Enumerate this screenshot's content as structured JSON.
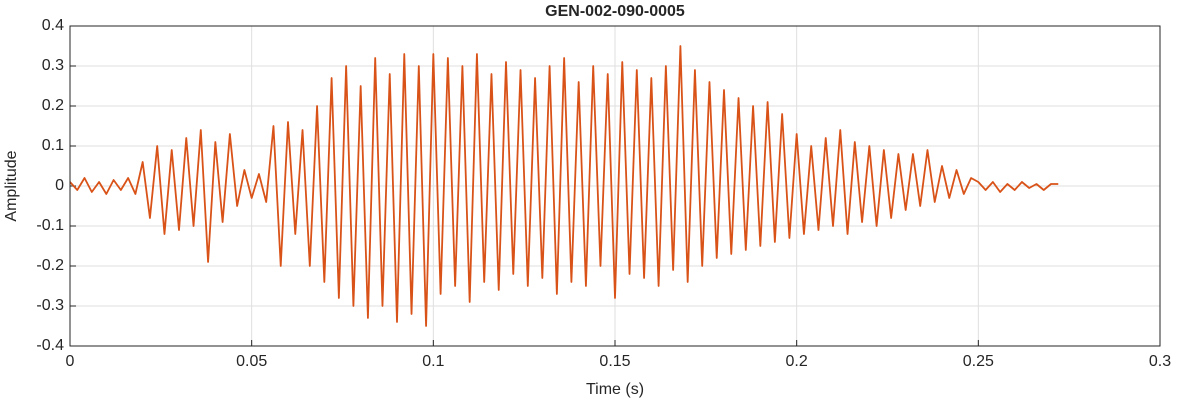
{
  "chart_data": {
    "type": "line",
    "title": "GEN-002-090-0005",
    "x_label": "Time (s)",
    "y_label": "Amplitude",
    "color": "#d95319",
    "grid": true,
    "xlim": [
      0,
      0.3
    ],
    "xticks": [
      0,
      0.05,
      0.1,
      0.15,
      0.2,
      0.25,
      0.3
    ],
    "ylim": [
      -0.4,
      0.4
    ],
    "yticks": [
      0.4,
      0.3,
      0.2,
      0.1,
      0,
      -0.1,
      -0.2,
      -0.3,
      -0.4
    ],
    "x": [
      0,
      0.002,
      0.004,
      0.006,
      0.008,
      0.01,
      0.012,
      0.014,
      0.016,
      0.018,
      0.02,
      0.022,
      0.024,
      0.026,
      0.028,
      0.03,
      0.032,
      0.034,
      0.036,
      0.038,
      0.04,
      0.042,
      0.044,
      0.046,
      0.048,
      0.05,
      0.052,
      0.054,
      0.056,
      0.058,
      0.06,
      0.062,
      0.064,
      0.066,
      0.068,
      0.07,
      0.072,
      0.074,
      0.076,
      0.078,
      0.08,
      0.082,
      0.084,
      0.086,
      0.088,
      0.09,
      0.092,
      0.094,
      0.096,
      0.098,
      0.1,
      0.102,
      0.104,
      0.106,
      0.108,
      0.11,
      0.112,
      0.114,
      0.116,
      0.118,
      0.12,
      0.122,
      0.124,
      0.126,
      0.128,
      0.13,
      0.132,
      0.134,
      0.136,
      0.138,
      0.14,
      0.142,
      0.144,
      0.146,
      0.148,
      0.15,
      0.152,
      0.154,
      0.156,
      0.158,
      0.16,
      0.162,
      0.164,
      0.166,
      0.168,
      0.17,
      0.172,
      0.174,
      0.176,
      0.178,
      0.18,
      0.182,
      0.184,
      0.186,
      0.188,
      0.19,
      0.192,
      0.194,
      0.196,
      0.198,
      0.2,
      0.202,
      0.204,
      0.206,
      0.208,
      0.21,
      0.212,
      0.214,
      0.216,
      0.218,
      0.22,
      0.222,
      0.224,
      0.226,
      0.228,
      0.23,
      0.232,
      0.234,
      0.236,
      0.238,
      0.24,
      0.242,
      0.244,
      0.246,
      0.248,
      0.25,
      0.252,
      0.254,
      0.256,
      0.258,
      0.26,
      0.262,
      0.264,
      0.266,
      0.268,
      0.27,
      0.272
    ],
    "values": [
      0.01,
      -0.01,
      0.02,
      -0.015,
      0.01,
      -0.02,
      0.015,
      -0.01,
      0.02,
      -0.02,
      0.06,
      -0.08,
      0.1,
      -0.12,
      0.09,
      -0.11,
      0.12,
      -0.1,
      0.14,
      -0.19,
      0.11,
      -0.09,
      0.13,
      -0.05,
      0.04,
      -0.03,
      0.03,
      -0.04,
      0.15,
      -0.2,
      0.16,
      -0.12,
      0.14,
      -0.2,
      0.2,
      -0.24,
      0.27,
      -0.28,
      0.3,
      -0.3,
      0.25,
      -0.33,
      0.32,
      -0.3,
      0.28,
      -0.34,
      0.33,
      -0.32,
      0.3,
      -0.35,
      0.33,
      -0.27,
      0.32,
      -0.25,
      0.3,
      -0.29,
      0.33,
      -0.24,
      0.28,
      -0.26,
      0.31,
      -0.22,
      0.29,
      -0.25,
      0.27,
      -0.23,
      0.3,
      -0.27,
      0.32,
      -0.24,
      0.26,
      -0.25,
      0.3,
      -0.2,
      0.28,
      -0.28,
      0.31,
      -0.22,
      0.29,
      -0.23,
      0.27,
      -0.25,
      0.3,
      -0.21,
      0.35,
      -0.24,
      0.29,
      -0.2,
      0.26,
      -0.18,
      0.24,
      -0.17,
      0.22,
      -0.16,
      0.2,
      -0.15,
      0.21,
      -0.14,
      0.18,
      -0.13,
      0.13,
      -0.12,
      0.1,
      -0.11,
      0.12,
      -0.1,
      0.14,
      -0.12,
      0.11,
      -0.09,
      0.1,
      -0.1,
      0.09,
      -0.08,
      0.08,
      -0.06,
      0.08,
      -0.05,
      0.09,
      -0.04,
      0.05,
      -0.03,
      0.04,
      -0.02,
      0.02,
      0.01,
      -0.01,
      0.01,
      -0.015,
      0.005,
      -0.01,
      0.01,
      -0.005,
      0.005,
      -0.01,
      0.005,
      0.005
    ]
  }
}
